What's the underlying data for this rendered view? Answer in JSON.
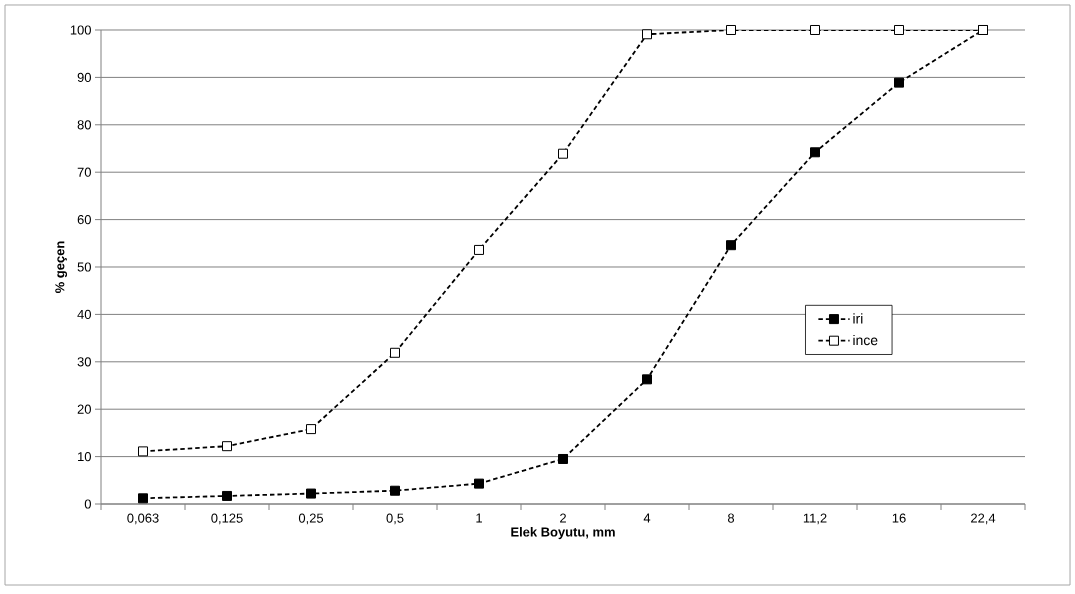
{
  "chart_data": {
    "type": "line",
    "xlabel": "Elek Boyutu, mm",
    "ylabel": "% geçen",
    "categories": [
      "0,063",
      "0,125",
      "0,25",
      "0,5",
      "1",
      "2",
      "4",
      "8",
      "11,2",
      "16",
      "22,4"
    ],
    "series": [
      {
        "name": "iri",
        "color": "#000000",
        "values": [
          1.2,
          1.7,
          2.2,
          2.8,
          4.3,
          9.5,
          26.3,
          54.6,
          74.2,
          88.9,
          100
        ]
      },
      {
        "name": "ince",
        "color": "#000000",
        "values": [
          11.1,
          12.2,
          15.8,
          31.9,
          53.6,
          73.9,
          99.1,
          100,
          100,
          100,
          100
        ]
      }
    ],
    "ylim": [
      0,
      100
    ],
    "yticks": [
      0,
      10,
      20,
      30,
      40,
      50,
      60,
      70,
      80,
      90,
      100
    ],
    "grid": "y",
    "legend": "right",
    "marker": "square",
    "line_style": "dashed"
  }
}
